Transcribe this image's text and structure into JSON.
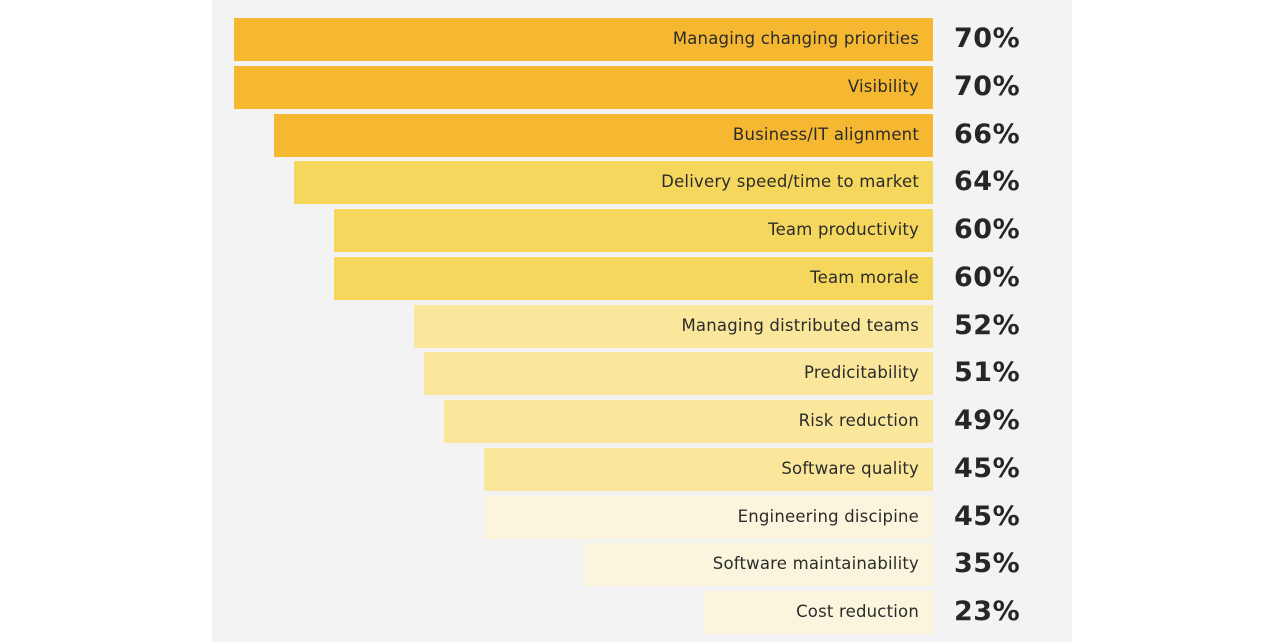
{
  "chart_data": {
    "type": "bar",
    "orientation": "horizontal",
    "title": "",
    "xlabel": "",
    "ylabel": "",
    "xlim": [
      0,
      70
    ],
    "grid": false,
    "legend": "none",
    "value_suffix": "%",
    "categories": [
      "Managing changing priorities",
      "Visibility",
      "Business/IT alignment",
      "Delivery speed/time to market",
      "Team productivity",
      "Team morale",
      "Managing distributed teams",
      "Predicitability",
      "Risk reduction",
      "Software quality",
      "Engineering discipine",
      "Software maintainability",
      "Cost reduction"
    ],
    "values": [
      70,
      70,
      66,
      64,
      60,
      60,
      52,
      51,
      49,
      45,
      45,
      35,
      23
    ],
    "value_labels": [
      "70%",
      "70%",
      "66%",
      "64%",
      "60%",
      "60%",
      "52%",
      "51%",
      "49%",
      "45%",
      "45%",
      "35%",
      "23%"
    ],
    "tiers": [
      0,
      0,
      0,
      1,
      1,
      1,
      2,
      2,
      2,
      2,
      3,
      3,
      3
    ],
    "tier_colors": [
      "#f6b830",
      "#f5d75e",
      "#fae79c",
      "#fcf5de"
    ]
  }
}
